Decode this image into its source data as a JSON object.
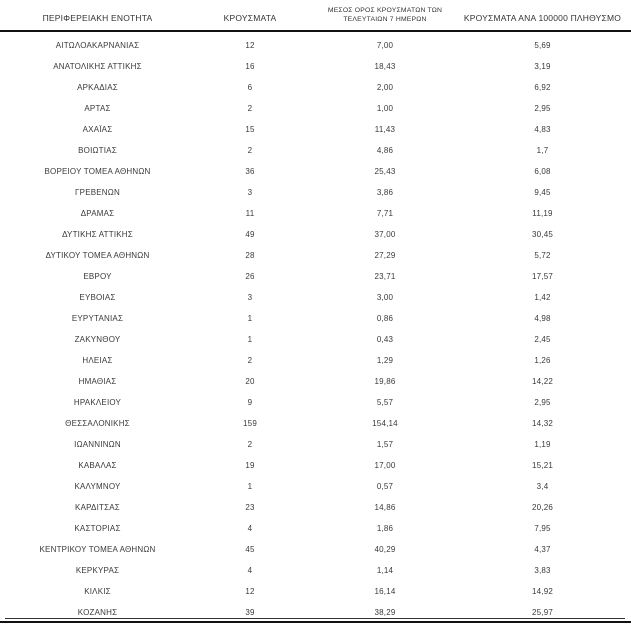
{
  "page": {
    "background": "#ffffff",
    "text_color": "#3a3a3a",
    "rule_color": "#111111"
  },
  "chart_data": {
    "type": "table",
    "columns": [
      "ΠΕΡΙΦΕΡΕΙΑΚΗ ΕΝΟΤΗΤΑ",
      "ΚΡΟΥΣΜΑΤΑ",
      "ΜΕΣΟΣ ΟΡΟΣ ΚΡΟΥΣΜΑΤΩΝ ΤΩΝ ΤΕΛΕΥΤΑΙΩΝ 7 ΗΜΕΡΩΝ",
      "ΚΡΟΥΣΜΑΤΑ ΑΝΑ 100000 ΠΛΗΘΥΣΜΟ"
    ],
    "column_header_lines": [
      [
        "ΠΕΡΙΦΕΡΕΙΑΚΗ ΕΝΟΤΗΤΑ"
      ],
      [
        "ΚΡΟΥΣΜΑΤΑ"
      ],
      [
        "ΜΕΣΟΣ ΟΡΟΣ ΚΡΟΥΣΜΑΤΩΝ ΤΩΝ",
        "ΤΕΛΕΥΤΑΙΩΝ 7 ΗΜΕΡΩΝ"
      ],
      [
        "ΚΡΟΥΣΜΑΤΑ ΑΝΑ 100000 ΠΛΗΘΥΣΜΟ"
      ]
    ],
    "rows": [
      [
        "ΑΙΤΩΛΟΑΚΑΡΝΑΝΙΑΣ",
        "12",
        "7,00",
        "5,69"
      ],
      [
        "ΑΝΑΤΟΛΙΚΗΣ ΑΤΤΙΚΗΣ",
        "16",
        "18,43",
        "3,19"
      ],
      [
        "ΑΡΚΑΔΙΑΣ",
        "6",
        "2,00",
        "6,92"
      ],
      [
        "ΑΡΤΑΣ",
        "2",
        "1,00",
        "2,95"
      ],
      [
        "ΑΧΑΪΑΣ",
        "15",
        "11,43",
        "4,83"
      ],
      [
        "ΒΟΙΩΤΙΑΣ",
        "2",
        "4,86",
        "1,7"
      ],
      [
        "ΒΟΡΕΙΟΥ ΤΟΜΕΑ ΑΘΗΝΩΝ",
        "36",
        "25,43",
        "6,08"
      ],
      [
        "ΓΡΕΒΕΝΩΝ",
        "3",
        "3,86",
        "9,45"
      ],
      [
        "ΔΡΑΜΑΣ",
        "11",
        "7,71",
        "11,19"
      ],
      [
        "ΔΥΤΙΚΗΣ ΑΤΤΙΚΗΣ",
        "49",
        "37,00",
        "30,45"
      ],
      [
        "ΔΥΤΙΚΟΥ ΤΟΜΕΑ ΑΘΗΝΩΝ",
        "28",
        "27,29",
        "5,72"
      ],
      [
        "ΕΒΡΟΥ",
        "26",
        "23,71",
        "17,57"
      ],
      [
        "ΕΥΒΟΙΑΣ",
        "3",
        "3,00",
        "1,42"
      ],
      [
        "ΕΥΡΥΤΑΝΙΑΣ",
        "1",
        "0,86",
        "4,98"
      ],
      [
        "ΖΑΚΥΝΘΟΥ",
        "1",
        "0,43",
        "2,45"
      ],
      [
        "ΗΛΕΙΑΣ",
        "2",
        "1,29",
        "1,26"
      ],
      [
        "ΗΜΑΘΙΑΣ",
        "20",
        "19,86",
        "14,22"
      ],
      [
        "ΗΡΑΚΛΕΙΟΥ",
        "9",
        "5,57",
        "2,95"
      ],
      [
        "ΘΕΣΣΑΛΟΝΙΚΗΣ",
        "159",
        "154,14",
        "14,32"
      ],
      [
        "ΙΩΑΝΝΙΝΩΝ",
        "2",
        "1,57",
        "1,19"
      ],
      [
        "ΚΑΒΑΛΑΣ",
        "19",
        "17,00",
        "15,21"
      ],
      [
        "ΚΑΛΥΜΝΟΥ",
        "1",
        "0,57",
        "3,4"
      ],
      [
        "ΚΑΡΔΙΤΣΑΣ",
        "23",
        "14,86",
        "20,26"
      ],
      [
        "ΚΑΣΤΟΡΙΑΣ",
        "4",
        "1,86",
        "7,95"
      ],
      [
        "ΚΕΝΤΡΙΚΟΥ ΤΟΜΕΑ ΑΘΗΝΩΝ",
        "45",
        "40,29",
        "4,37"
      ],
      [
        "ΚΕΡΚΥΡΑΣ",
        "4",
        "1,14",
        "3,83"
      ],
      [
        "ΚΙΛΚΙΣ",
        "12",
        "16,14",
        "14,92"
      ],
      [
        "ΚΟΖΑΝΗΣ",
        "39",
        "38,29",
        "25,97"
      ]
    ]
  }
}
